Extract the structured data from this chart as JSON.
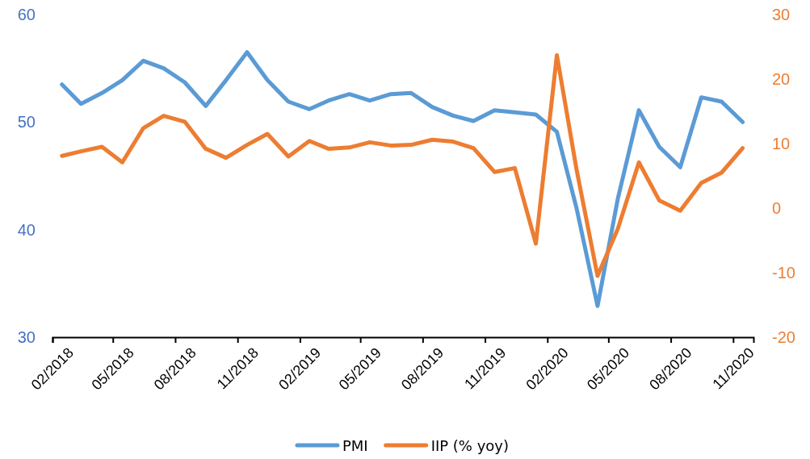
{
  "chart_data": {
    "type": "line",
    "x": [
      "2018-02-15",
      "2018-03-15",
      "2018-04-15",
      "2018-05-15",
      "2018-06-15",
      "2018-07-15",
      "2018-08-15",
      "2018-09-15",
      "2018-10-15",
      "2018-11-15",
      "2018-12-15",
      "2019-01-15",
      "2019-02-15",
      "2019-03-15",
      "2019-04-15",
      "2019-05-15",
      "2019-06-15",
      "2019-07-15",
      "2019-08-15",
      "2019-09-15",
      "2019-10-15",
      "2019-11-15",
      "2019-12-15",
      "2020-01-15",
      "2020-02-15",
      "2020-03-15",
      "2020-04-15",
      "2020-05-15",
      "2020-06-15",
      "2020-07-15",
      "2020-08-15",
      "2020-09-15",
      "2020-10-15",
      "2020-11-15"
    ],
    "series": [
      {
        "name": "PMI",
        "color": "#5b9bd5",
        "values": [
          53.5,
          51.7,
          52.7,
          53.9,
          55.7,
          55.0,
          53.7,
          51.5,
          53.9,
          56.5,
          53.9,
          51.9,
          51.2,
          52.0,
          52.6,
          52.0,
          52.6,
          52.7,
          51.4,
          50.6,
          50.1,
          51.1,
          50.9,
          50.7,
          49.1,
          42.0,
          32.9,
          42.9,
          51.1,
          47.7,
          45.8,
          52.3,
          51.9,
          50.0
        ]
      },
      {
        "name": "IIP (% yoy)",
        "color": "#ed7d31",
        "axis": "y2",
        "values": [
          8.1,
          8.8,
          9.5,
          7.1,
          12.4,
          14.3,
          13.4,
          9.2,
          7.8,
          9.8,
          11.5,
          8.0,
          10.4,
          9.2,
          9.4,
          10.2,
          9.7,
          9.8,
          10.6,
          10.3,
          9.3,
          5.6,
          6.2,
          -5.5,
          23.7,
          6.0,
          -10.5,
          -3.2,
          7.1,
          1.2,
          -0.4,
          3.9,
          5.5,
          9.3
        ]
      }
    ],
    "xlim": [
      "2018-02-01",
      "2020-12-01"
    ],
    "xticks": [
      {
        "value": "2018-02-01",
        "label": "02/2018"
      },
      {
        "value": "2018-05-01",
        "label": "05/2018"
      },
      {
        "value": "2018-08-01",
        "label": "08/2018"
      },
      {
        "value": "2018-11-01",
        "label": "11/2018"
      },
      {
        "value": "2019-02-01",
        "label": "02/2019"
      },
      {
        "value": "2019-05-01",
        "label": "05/2019"
      },
      {
        "value": "2019-08-01",
        "label": "08/2019"
      },
      {
        "value": "2019-11-01",
        "label": "11/2019"
      },
      {
        "value": "2020-02-01",
        "label": "02/2020"
      },
      {
        "value": "2020-05-01",
        "label": "05/2020"
      },
      {
        "value": "2020-08-01",
        "label": "08/2020"
      },
      {
        "value": "2020-11-01",
        "label": "11/2020"
      }
    ],
    "ylim": [
      30,
      60
    ],
    "yticks": [
      30,
      40,
      50,
      60
    ],
    "y2lim": [
      -20,
      30
    ],
    "y2ticks": [
      -20,
      -10,
      0,
      10,
      20,
      30
    ],
    "grid": false,
    "legend": "bottom",
    "marker": "none",
    "line_style": "solid"
  }
}
